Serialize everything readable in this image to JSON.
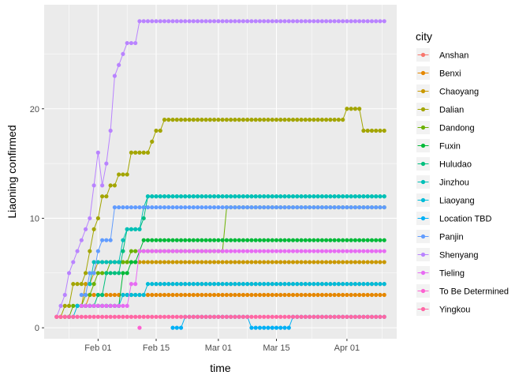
{
  "chart_data": {
    "type": "line",
    "xlabel": "time",
    "ylabel": "Liaoning  confirmed",
    "x_start": "2020-01-22",
    "x_end": "2020-04-10",
    "xlim": [
      "2020-01-19",
      "2020-04-13"
    ],
    "ylim": [
      -1,
      29.5
    ],
    "x_ticks": [
      {
        "date": "2020-02-01",
        "label": "Feb 01"
      },
      {
        "date": "2020-02-15",
        "label": "Feb 15"
      },
      {
        "date": "2020-03-01",
        "label": "Mar 01"
      },
      {
        "date": "2020-03-15",
        "label": "Mar 15"
      },
      {
        "date": "2020-04-01",
        "label": "Apr 01"
      }
    ],
    "y_ticks": [
      0,
      10,
      20
    ],
    "grid": true,
    "legend_title": "city",
    "legend_position": "right",
    "series": [
      {
        "name": "Anshan",
        "color": "#F8766D",
        "points": [
          [
            "2020-02-15",
            4
          ],
          [
            "2020-04-10",
            4
          ]
        ]
      },
      {
        "name": "Benxi",
        "color": "#E58700",
        "points": [
          [
            "2020-01-29",
            2
          ],
          [
            "2020-01-30",
            3
          ],
          [
            "2020-04-10",
            3
          ]
        ]
      },
      {
        "name": "Chaoyang",
        "color": "#C99800",
        "points": [
          [
            "2020-01-28",
            2
          ],
          [
            "2020-01-29",
            4
          ],
          [
            "2020-01-31",
            5
          ],
          [
            "2020-02-01",
            6
          ],
          [
            "2020-04-10",
            6
          ]
        ]
      },
      {
        "name": "Dalian",
        "color": "#A3A500",
        "points": [
          [
            "2020-01-22",
            1
          ],
          [
            "2020-01-24",
            2
          ],
          [
            "2020-01-26",
            4
          ],
          [
            "2020-01-29",
            5
          ],
          [
            "2020-01-30",
            7
          ],
          [
            "2020-01-31",
            9
          ],
          [
            "2020-02-01",
            10
          ],
          [
            "2020-02-02",
            12
          ],
          [
            "2020-02-03",
            12
          ],
          [
            "2020-02-04",
            13
          ],
          [
            "2020-02-06",
            14
          ],
          [
            "2020-02-08",
            14
          ],
          [
            "2020-02-09",
            16
          ],
          [
            "2020-02-13",
            16
          ],
          [
            "2020-02-14",
            17
          ],
          [
            "2020-02-15",
            18
          ],
          [
            "2020-02-17",
            19
          ],
          [
            "2020-03-31",
            19
          ],
          [
            "2020-04-01",
            20
          ],
          [
            "2020-04-04",
            20
          ],
          [
            "2020-04-05",
            18
          ],
          [
            "2020-04-10",
            18
          ]
        ]
      },
      {
        "name": "Dandong",
        "color": "#6BB100",
        "points": [
          [
            "2020-01-24",
            1
          ],
          [
            "2020-01-26",
            2
          ],
          [
            "2020-01-28",
            2
          ],
          [
            "2020-01-29",
            3
          ],
          [
            "2020-01-31",
            4
          ],
          [
            "2020-02-01",
            5
          ],
          [
            "2020-02-03",
            5
          ],
          [
            "2020-02-04",
            6
          ],
          [
            "2020-02-08",
            6
          ],
          [
            "2020-02-09",
            7
          ],
          [
            "2020-02-29",
            7
          ],
          [
            "2020-03-03",
            11
          ],
          [
            "2020-04-10",
            11
          ]
        ]
      },
      {
        "name": "Fuxin",
        "color": "#00BA38",
        "points": [
          [
            "2020-01-27",
            2
          ],
          [
            "2020-02-06",
            2
          ],
          [
            "2020-02-07",
            5
          ],
          [
            "2020-02-09",
            6
          ],
          [
            "2020-02-11",
            7
          ],
          [
            "2020-02-12",
            8
          ],
          [
            "2020-04-10",
            8
          ]
        ]
      },
      {
        "name": "Huludao",
        "color": "#00BF7D",
        "points": [
          [
            "2020-01-30",
            2
          ],
          [
            "2020-02-01",
            3
          ],
          [
            "2020-02-03",
            5
          ],
          [
            "2020-02-07",
            7
          ],
          [
            "2020-02-08",
            9
          ],
          [
            "2020-02-11",
            9
          ],
          [
            "2020-02-12",
            10
          ],
          [
            "2020-02-13",
            12
          ],
          [
            "2020-04-10",
            12
          ]
        ]
      },
      {
        "name": "Jinzhou",
        "color": "#00C0B8",
        "points": [
          [
            "2020-01-30",
            4
          ],
          [
            "2020-01-31",
            6
          ],
          [
            "2020-02-06",
            6
          ],
          [
            "2020-02-07",
            8
          ],
          [
            "2020-02-08",
            9
          ],
          [
            "2020-02-11",
            9
          ],
          [
            "2020-02-12",
            11
          ],
          [
            "2020-02-13",
            12
          ],
          [
            "2020-04-10",
            12
          ]
        ]
      },
      {
        "name": "Liaoyang",
        "color": "#00BCD8",
        "points": [
          [
            "2020-01-25",
            1
          ],
          [
            "2020-01-26",
            1
          ],
          [
            "2020-01-27",
            2
          ],
          [
            "2020-02-06",
            2
          ],
          [
            "2020-02-07",
            3
          ],
          [
            "2020-02-12",
            3
          ],
          [
            "2020-02-13",
            4
          ],
          [
            "2020-04-10",
            4
          ]
        ]
      },
      {
        "name": "Location TBD",
        "color": "#00B0F6",
        "points": [
          [
            "2020-02-19",
            0
          ],
          [
            "2020-02-21",
            0
          ],
          [
            "2020-02-22",
            1
          ],
          [
            "2020-03-08",
            1
          ],
          [
            "2020-03-09",
            0
          ],
          [
            "2020-03-13",
            0
          ],
          [
            "2020-03-16",
            0
          ],
          [
            "2020-03-17",
            0
          ],
          [
            "2020-03-19",
            1
          ],
          [
            "2020-04-10",
            1
          ]
        ]
      },
      {
        "name": "Panjin",
        "color": "#619CFF",
        "points": [
          [
            "2020-01-28",
            3
          ],
          [
            "2020-01-29",
            3
          ],
          [
            "2020-01-30",
            5
          ],
          [
            "2020-02-01",
            7
          ],
          [
            "2020-02-02",
            8
          ],
          [
            "2020-02-04",
            8
          ],
          [
            "2020-02-05",
            11
          ],
          [
            "2020-04-10",
            11
          ]
        ]
      },
      {
        "name": "Shenyang",
        "color": "#B983FF",
        "points": [
          [
            "2020-01-22",
            1
          ],
          [
            "2020-01-23",
            2
          ],
          [
            "2020-01-24",
            3
          ],
          [
            "2020-01-25",
            5
          ],
          [
            "2020-01-26",
            6
          ],
          [
            "2020-01-27",
            7
          ],
          [
            "2020-01-28",
            8
          ],
          [
            "2020-01-29",
            9
          ],
          [
            "2020-01-30",
            10
          ],
          [
            "2020-01-31",
            13
          ],
          [
            "2020-02-01",
            16
          ],
          [
            "2020-02-02",
            13
          ],
          [
            "2020-02-03",
            15
          ],
          [
            "2020-02-04",
            18
          ],
          [
            "2020-02-05",
            23
          ],
          [
            "2020-02-06",
            24
          ],
          [
            "2020-02-07",
            25
          ],
          [
            "2020-02-08",
            26
          ],
          [
            "2020-02-10",
            26
          ],
          [
            "2020-02-11",
            28
          ],
          [
            "2020-04-10",
            28
          ]
        ]
      },
      {
        "name": "Tieling",
        "color": "#E76BF3",
        "points": [
          [
            "2020-01-28",
            2
          ],
          [
            "2020-02-08",
            2
          ],
          [
            "2020-02-09",
            4
          ],
          [
            "2020-02-10",
            4
          ],
          [
            "2020-02-11",
            7
          ],
          [
            "2020-04-10",
            7
          ]
        ]
      },
      {
        "name": "To Be Determined",
        "color": "#FD61D1",
        "points": [
          [
            "2020-02-11",
            0
          ]
        ]
      },
      {
        "name": "Yingkou",
        "color": "#FF67A4",
        "points": [
          [
            "2020-01-22",
            1
          ],
          [
            "2020-04-10",
            1
          ]
        ]
      }
    ]
  }
}
